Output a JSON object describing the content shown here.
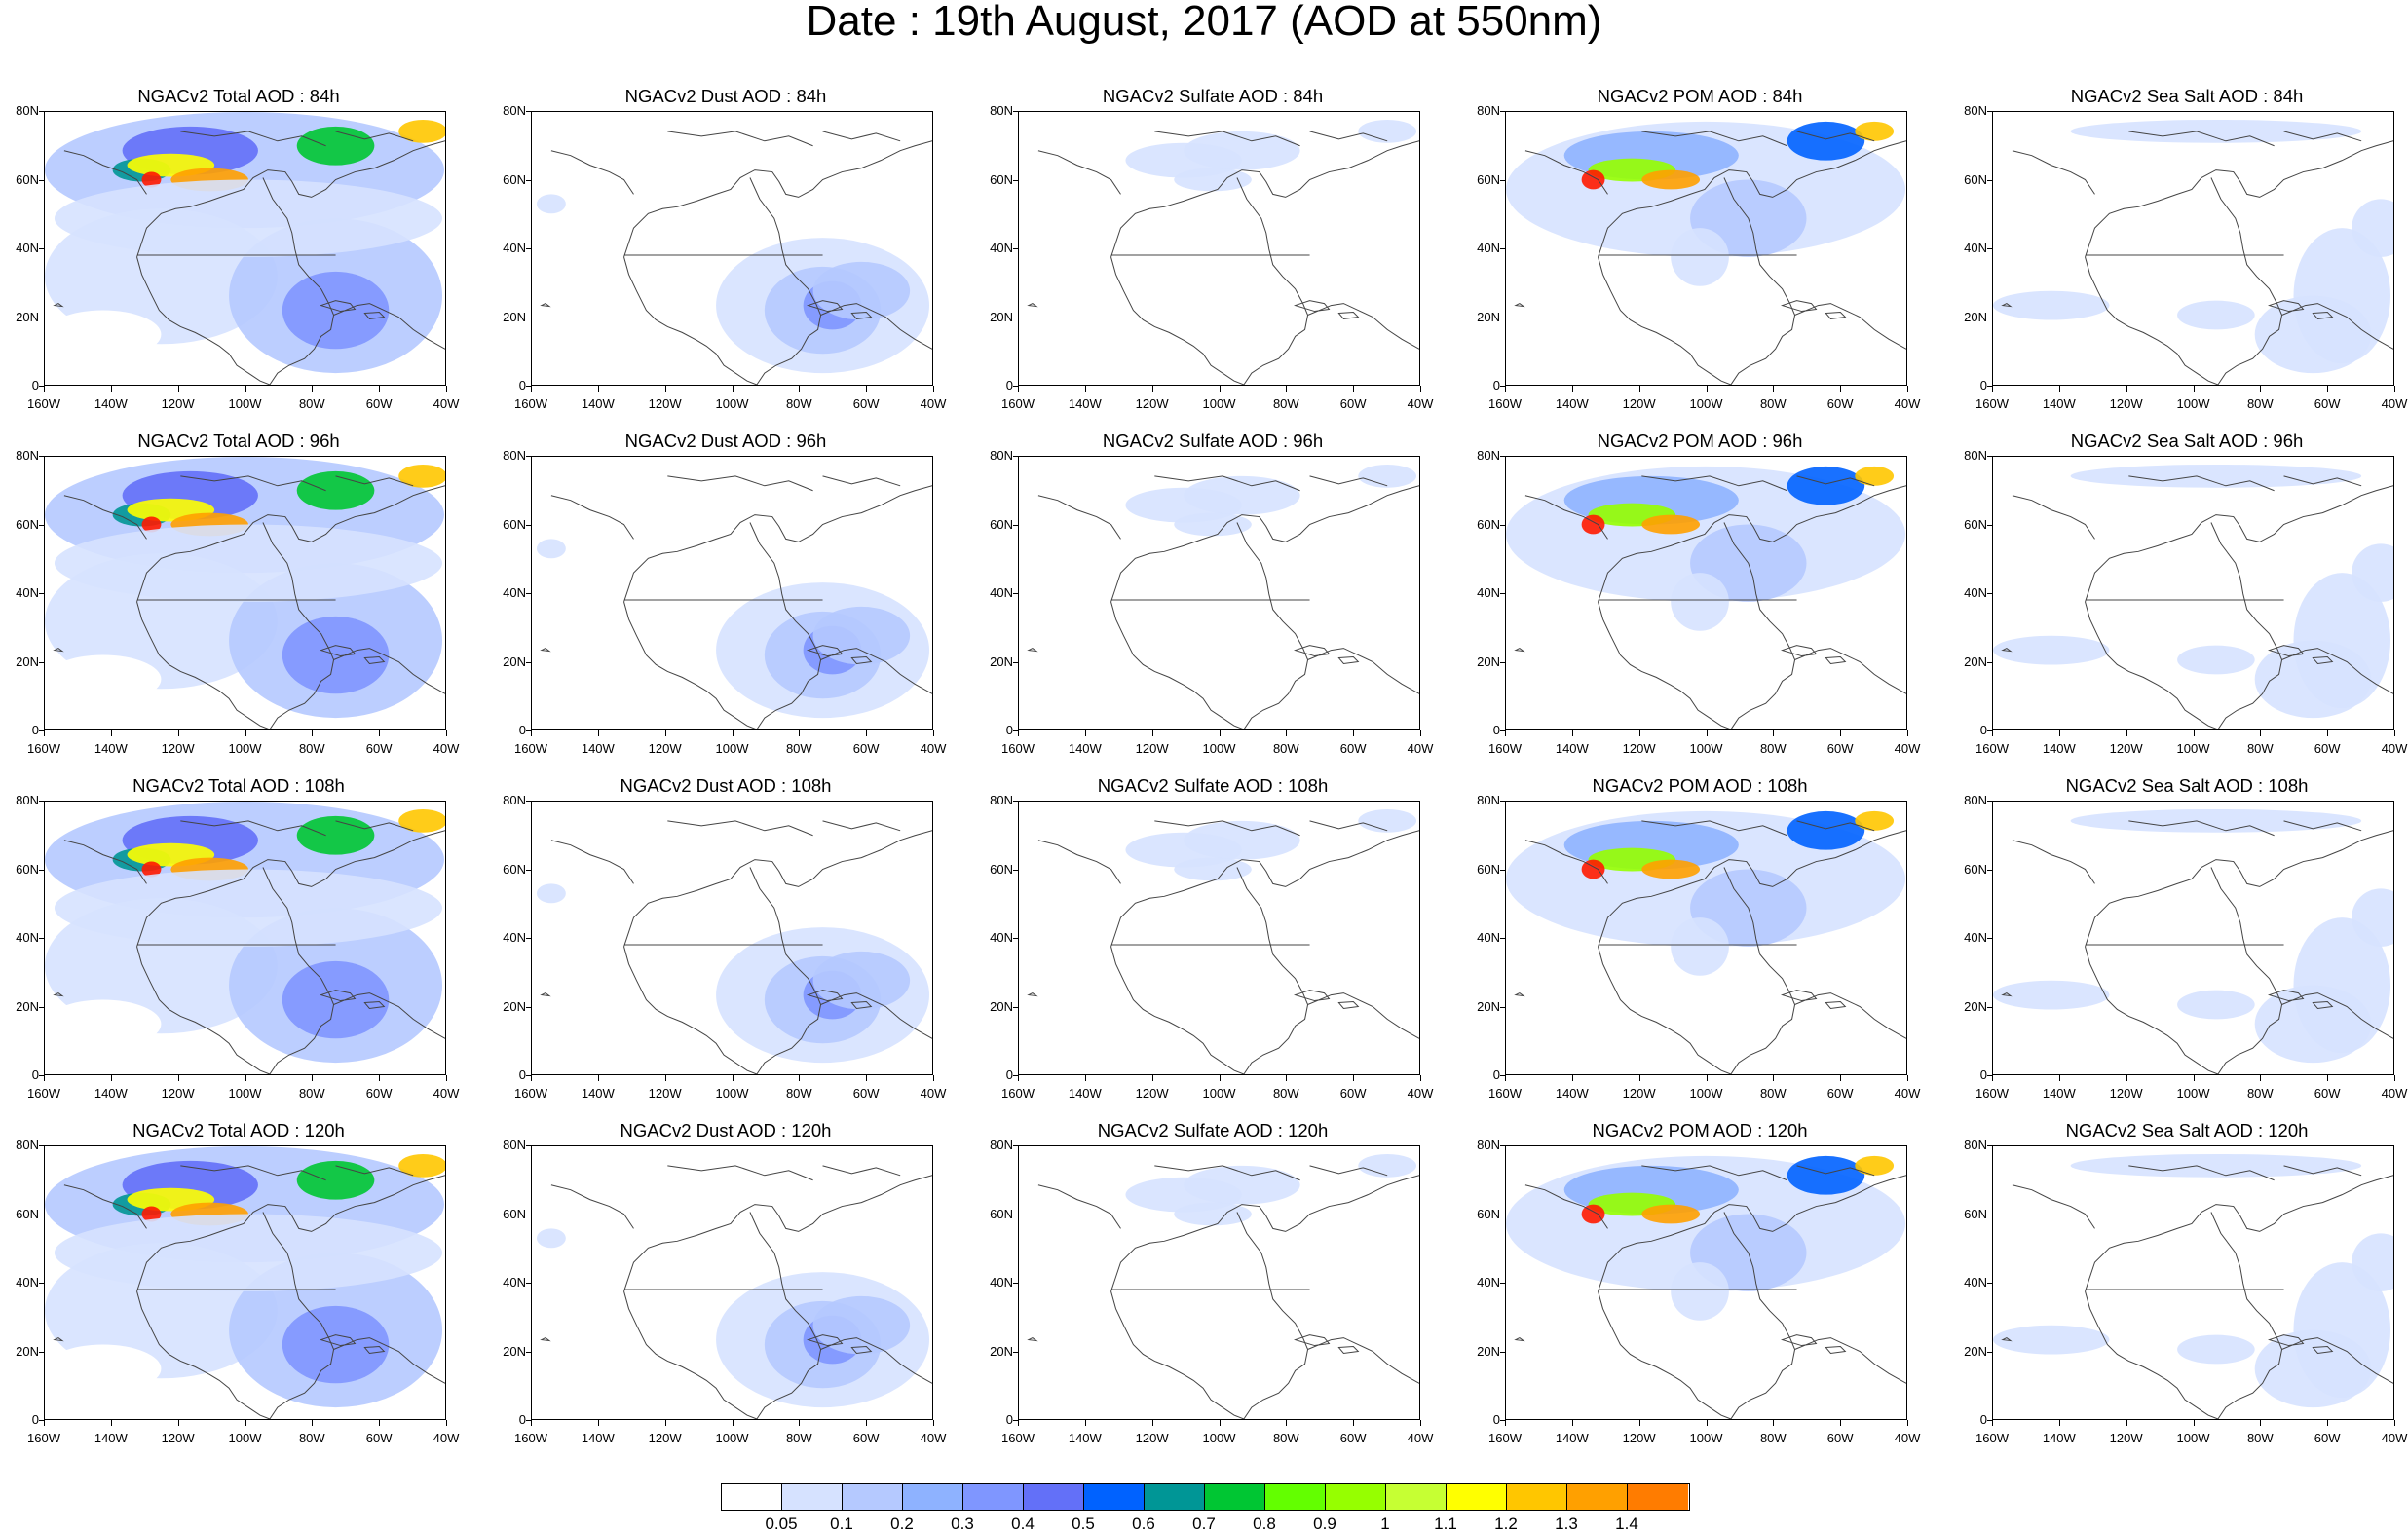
{
  "title": "Date : 19th August, 2017 (AOD at 550nm)",
  "panel_titles": [
    [
      "NGACv2 Total AOD : 84h",
      "NGACv2 Dust AOD : 84h",
      "NGACv2 Sulfate AOD : 84h",
      "NGACv2 POM AOD : 84h",
      "NGACv2 Sea Salt AOD : 84h"
    ],
    [
      "NGACv2 Total AOD : 96h",
      "NGACv2 Dust AOD : 96h",
      "NGACv2 Sulfate AOD : 96h",
      "NGACv2 POM AOD : 96h",
      "NGACv2 Sea Salt AOD : 96h"
    ],
    [
      "NGACv2 Total AOD : 108h",
      "NGACv2 Dust AOD : 108h",
      "NGACv2 Sulfate AOD : 108h",
      "NGACv2 POM AOD : 108h",
      "NGACv2 Sea Salt AOD : 108h"
    ],
    [
      "NGACv2 Total AOD : 120h",
      "NGACv2 Dust AOD : 120h",
      "NGACv2 Sulfate AOD : 120h",
      "NGACv2 POM AOD : 120h",
      "NGACv2 Sea Salt  AOD : 120h"
    ]
  ],
  "lat_ticks": [
    "0",
    "20N",
    "40N",
    "60N",
    "80N"
  ],
  "lon_ticks": [
    "160W",
    "140W",
    "120W",
    "100W",
    "80W",
    "60W",
    "40W"
  ],
  "colorbar": {
    "colors": [
      "#ffffff",
      "#d6e2ff",
      "#b5c9ff",
      "#8eb2ff",
      "#7f96ff",
      "#6370f8",
      "#0062ff",
      "#009696",
      "#00c633",
      "#63ff00",
      "#96ff00",
      "#c6ff33",
      "#ffff00",
      "#ffc600",
      "#ffa000",
      "#ff7c00",
      "#ff1900"
    ],
    "labels": [
      "0.05",
      "0.1",
      "0.2",
      "0.3",
      "0.4",
      "0.5",
      "0.6",
      "0.7",
      "0.8",
      "0.9",
      "1",
      "1.1",
      "1.2",
      "1.3",
      "1.4"
    ]
  },
  "species_colors": {
    "total": "#a9bcf5",
    "dust": "#aebff6",
    "sulfate": "#c8d4f8",
    "pom": "#a3b6f4",
    "seasalt": "#ccd8f9"
  }
}
